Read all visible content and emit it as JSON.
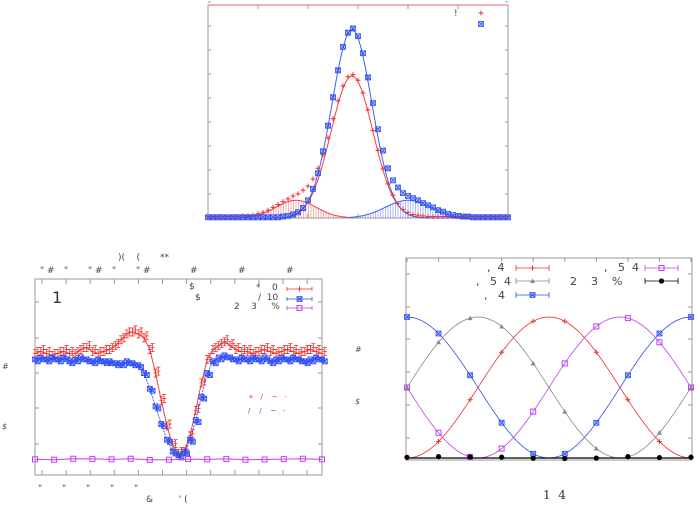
{
  "colors": {
    "red": "#f03030",
    "blue": "#3050f0",
    "purple": "#c040f0",
    "gray": "#888888",
    "black": "#000000",
    "frame": "#888888"
  },
  "chart_data": [
    {
      "type": "scatter",
      "title": "",
      "xlim": [
        -30,
        30
      ],
      "ylim": [
        0,
        300
      ],
      "x_start": -30,
      "x_step": 1,
      "legend": [
        {
          "label": "!",
          "series": "red"
        },
        {
          "label": "",
          "series": "blue"
        }
      ],
      "legend_placement": "top-right",
      "series": [
        {
          "name": "red",
          "marker": "plus",
          "values": [
            2,
            2,
            2,
            2,
            2,
            2,
            2,
            3,
            3,
            4,
            6,
            8,
            11,
            15,
            19,
            23,
            27,
            31,
            34,
            39,
            45,
            55,
            70,
            89,
            113,
            140,
            165,
            186,
            199,
            202,
            194,
            176,
            152,
            123,
            95,
            69,
            48,
            32,
            20,
            12,
            8,
            5,
            4,
            3,
            2,
            2,
            2,
            2,
            2,
            2,
            2,
            2,
            2,
            2,
            2,
            2,
            2,
            2,
            2,
            2,
            2
          ]
        },
        {
          "name": "blue",
          "marker": "star",
          "values": [
            1,
            1,
            1,
            1,
            1,
            1,
            1,
            1,
            1,
            1,
            1,
            1,
            1,
            1,
            1,
            2,
            3,
            5,
            8,
            14,
            25,
            41,
            63,
            94,
            130,
            170,
            208,
            241,
            261,
            267,
            256,
            232,
            198,
            162,
            125,
            95,
            70,
            53,
            43,
            35,
            31,
            28,
            25,
            21,
            18,
            15,
            11,
            9,
            6,
            4,
            3,
            2,
            2,
            1,
            1,
            1,
            1,
            1,
            1,
            1,
            1
          ]
        }
      ],
      "fits": [
        {
          "series": "red",
          "amp": 200,
          "center": -1.2,
          "sigma": 4.2,
          "type": "curve"
        },
        {
          "series": "blue",
          "amp": 265,
          "center": -1.2,
          "sigma": 4.0,
          "type": "curve"
        },
        {
          "series": "red",
          "amp": 25,
          "center": -12.4,
          "sigma": 4.0,
          "type": "impulses"
        },
        {
          "series": "blue",
          "amp": 25,
          "center": 10,
          "sigma": 4.5,
          "type": "impulses"
        }
      ]
    },
    {
      "type": "line",
      "title": ")(    (       **",
      "top_tick_labels": [
        "\" #",
        "\"",
        "\" #",
        "\"",
        "\" #",
        "#",
        "#",
        "#"
      ],
      "bottom_tick_labels": [
        "\"",
        "\"",
        "\"",
        "\"",
        "\""
      ],
      "xlabel": "&         ' (",
      "ylabels": [
        "#",
        "$"
      ],
      "panel_label": "1",
      "annotations": [
        "$",
        "$"
      ],
      "inner_key": [
        "+   /    ~   -",
        "/    /    ~   -"
      ],
      "xlim": [
        0,
        100
      ],
      "ylim": [
        0,
        1
      ],
      "legend": [
        {
          "label": "*    0",
          "series": "red"
        },
        {
          "label": "/  10",
          "series": "blue"
        },
        {
          "label": "2    3     %",
          "series": "purple"
        }
      ],
      "legend_placement": "top-right",
      "x_step": 2,
      "series": [
        {
          "name": "red",
          "marker": "errorbar",
          "values": [
            0.62,
            0.63,
            0.62,
            0.61,
            0.62,
            0.63,
            0.62,
            0.62,
            0.64,
            0.65,
            0.63,
            0.62,
            0.63,
            0.64,
            0.66,
            0.69,
            0.72,
            0.73,
            0.72,
            0.7,
            0.64,
            0.52,
            0.38,
            0.25,
            0.15,
            0.11,
            0.12,
            0.2,
            0.33,
            0.47,
            0.59,
            0.64,
            0.66,
            0.68,
            0.66,
            0.64,
            0.63,
            0.63,
            0.62,
            0.63,
            0.64,
            0.63,
            0.62,
            0.63,
            0.64,
            0.63,
            0.62,
            0.63,
            0.64,
            0.63,
            0.62
          ]
        },
        {
          "name": "blue",
          "marker": "star",
          "values": [
            0.59,
            0.6,
            0.59,
            0.6,
            0.59,
            0.6,
            0.58,
            0.59,
            0.6,
            0.59,
            0.58,
            0.59,
            0.58,
            0.58,
            0.57,
            0.57,
            0.58,
            0.57,
            0.56,
            0.52,
            0.44,
            0.35,
            0.26,
            0.18,
            0.12,
            0.1,
            0.12,
            0.18,
            0.28,
            0.4,
            0.52,
            0.58,
            0.6,
            0.61,
            0.6,
            0.59,
            0.6,
            0.59,
            0.6,
            0.59,
            0.6,
            0.58,
            0.59,
            0.6,
            0.59,
            0.6,
            0.59,
            0.58,
            0.59,
            0.6,
            0.59
          ]
        },
        {
          "name": "purple",
          "marker": "open-square",
          "x_step": 6.667,
          "values": [
            0.08,
            0.078,
            0.083,
            0.082,
            0.08,
            0.083,
            0.077,
            0.078,
            0.081,
            0.08,
            0.082,
            0.078,
            0.079,
            0.081,
            0.083,
            0.08
          ]
        }
      ]
    },
    {
      "type": "line",
      "xlabel": "1  4",
      "ylabels": [
        "#",
        "$"
      ],
      "xlim": [
        0,
        9
      ],
      "ylim": [
        -0.01,
        1.42
      ],
      "x": [
        0,
        1,
        2,
        3,
        4,
        5,
        6,
        7,
        8,
        9
      ],
      "legend": [
        {
          "label": ",  4",
          "series": "red"
        },
        {
          "label": ",   5  4",
          "series": "gray"
        },
        {
          "label": ",   4",
          "series": "blue"
        },
        {
          "label": ",   5  4",
          "series": "purple"
        },
        {
          "label": "2    3    %",
          "series": "black"
        }
      ],
      "legend_placement": "top",
      "series": [
        {
          "name": "red",
          "marker": "plus",
          "values": [
            0,
            0.117,
            0.413,
            0.75,
            0.97,
            0.97,
            0.75,
            0.413,
            0.117,
            0
          ],
          "fit": {
            "func": "sin2",
            "shift": 0
          }
        },
        {
          "name": "blue",
          "marker": "star",
          "values": [
            1,
            0.883,
            0.587,
            0.25,
            0.03,
            0.03,
            0.25,
            0.587,
            0.883,
            1
          ],
          "fit": {
            "func": "cos2",
            "shift": 0
          }
        },
        {
          "name": "purple",
          "marker": "open-square",
          "values": [
            0.5,
            0.179,
            0.008,
            0.067,
            0.329,
            0.671,
            0.933,
            0.992,
            0.821,
            0.5
          ],
          "fit": {
            "func": "sin2",
            "shift": 2.25
          }
        },
        {
          "name": "gray",
          "marker": "triangle",
          "values": [
            0.5,
            0.821,
            0.992,
            0.933,
            0.671,
            0.329,
            0.067,
            0.008,
            0.179,
            0.5
          ],
          "fit": {
            "func": "cos2",
            "shift": 2.25
          }
        },
        {
          "name": "black",
          "marker": "circle",
          "values": [
            0.005,
            0.01,
            0.008,
            0.006,
            -0.002,
            -0.004,
            -0.001,
            0.01,
            0.003,
            0.006
          ],
          "fit": {
            "func": "zero",
            "shift": 0
          }
        }
      ]
    }
  ]
}
